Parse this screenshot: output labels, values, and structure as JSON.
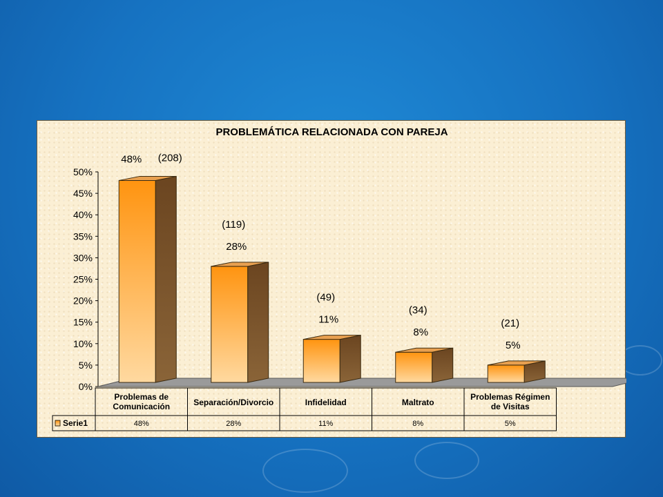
{
  "background": {
    "accent": "#1672c1"
  },
  "chart_data": {
    "type": "bar",
    "title": "PROBLEMÁTICA RELACIONADA CON PAREJA",
    "categories": [
      [
        "Problemas de",
        "Comunicación"
      ],
      [
        "Separación/Divorcio"
      ],
      [
        "Infidelidad"
      ],
      [
        "Maltrato"
      ],
      [
        "Problemas Régimen",
        "de Visitas"
      ]
    ],
    "series": [
      {
        "name": "Serie1",
        "values": [
          48,
          28,
          11,
          8,
          5
        ],
        "value_labels": [
          "48%",
          "28%",
          "11%",
          "8%",
          "5%"
        ],
        "counts": [
          "(208)",
          "(119)",
          "(49)",
          "(34)",
          "(21)"
        ],
        "table_labels": [
          "48%",
          "28%",
          "11%",
          "8%",
          "5%"
        ]
      }
    ],
    "y_ticks": [
      "0%",
      "5%",
      "10%",
      "15%",
      "20%",
      "25%",
      "30%",
      "35%",
      "40%",
      "45%",
      "50%"
    ],
    "ylim": [
      0,
      50
    ],
    "style": "3d-bar",
    "data_table": true,
    "colors": {
      "bar_front_top": "#ff9410",
      "bar_front_bottom": "#ffd9a0",
      "bar_side": "#7a5226",
      "bar_top": "#e8a050"
    }
  }
}
